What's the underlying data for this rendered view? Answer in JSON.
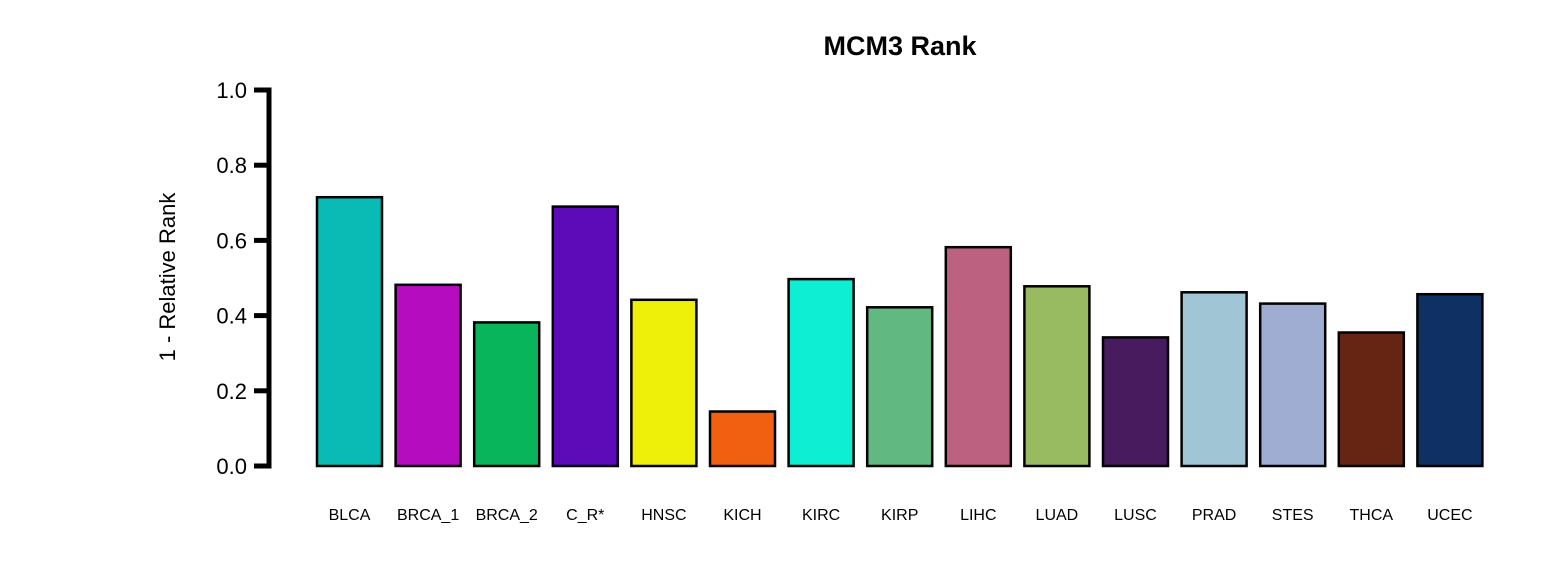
{
  "chart_data": {
    "type": "bar",
    "title": "MCM3 Rank",
    "xlabel": "",
    "ylabel": "1 - Relative Rank",
    "ylim": [
      0,
      1
    ],
    "yticks": [
      "0.0",
      "0.2",
      "0.4",
      "0.6",
      "0.8",
      "1.0"
    ],
    "grid": false,
    "legend": false,
    "categories": [
      "BLCA",
      "BRCA_1",
      "BRCA_2",
      "C_R*",
      "HNSC",
      "KICH",
      "KIRC",
      "KIRP",
      "LIHC",
      "LUAD",
      "LUSC",
      "PRAD",
      "STES",
      "THCA",
      "UCEC"
    ],
    "values": [
      0.715,
      0.482,
      0.382,
      0.69,
      0.442,
      0.145,
      0.497,
      0.422,
      0.582,
      0.478,
      0.342,
      0.462,
      0.432,
      0.355,
      0.457
    ],
    "colors": [
      "#0ABAB5",
      "#B40CBE",
      "#09B55A",
      "#5D0AB9",
      "#EEF00A",
      "#F06010",
      "#0DEED2",
      "#61B981",
      "#BC6180",
      "#98BB62",
      "#481A5E",
      "#A0C5D4",
      "#A0ADD2",
      "#662512",
      "#0F3063"
    ]
  }
}
